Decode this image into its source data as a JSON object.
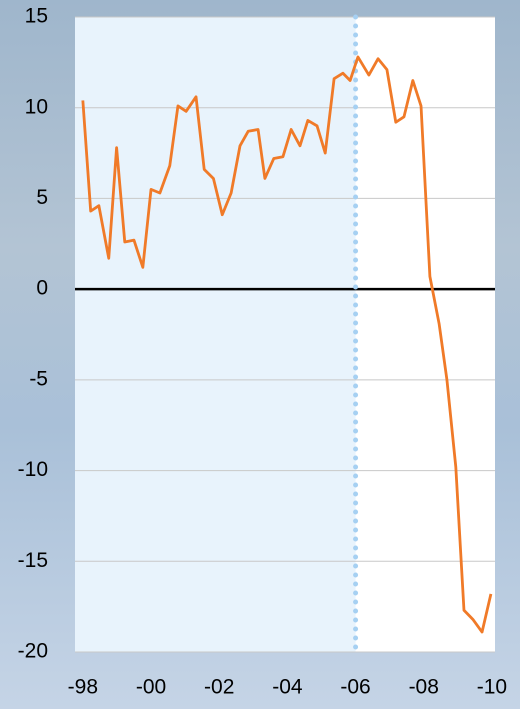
{
  "chart_data": {
    "type": "line",
    "x": [
      1998.0,
      1998.23,
      1998.47,
      1998.76,
      1998.99,
      1999.23,
      1999.5,
      1999.76,
      2000.0,
      2000.26,
      2000.55,
      2000.79,
      2001.03,
      2001.32,
      2001.56,
      2001.83,
      2002.09,
      2002.35,
      2002.61,
      2002.85,
      2003.14,
      2003.34,
      2003.6,
      2003.87,
      2004.11,
      2004.37,
      2004.6,
      2004.87,
      2005.11,
      2005.37,
      2005.63,
      2005.84,
      2006.07,
      2006.39,
      2006.66,
      2006.92,
      2007.18,
      2007.42,
      2007.68,
      2007.92,
      2008.18,
      2008.45,
      2008.68,
      2008.94,
      2009.18,
      2009.44,
      2009.71,
      2009.97
    ],
    "series": [
      {
        "color": "#f07a28",
        "values": [
          10.4,
          4.3,
          4.6,
          1.7,
          7.8,
          2.6,
          2.7,
          1.2,
          5.5,
          5.3,
          6.8,
          10.1,
          9.8,
          10.6,
          6.6,
          6.1,
          4.1,
          5.3,
          7.9,
          8.7,
          8.8,
          6.1,
          7.2,
          7.3,
          8.8,
          7.9,
          9.3,
          9.0,
          7.5,
          11.6,
          11.9,
          11.5,
          12.8,
          11.8,
          12.7,
          12.1,
          9.2,
          9.5,
          11.5,
          10.1,
          0.7,
          -1.9,
          -5.0,
          -9.8,
          -17.7,
          -18.2,
          -18.9,
          -16.8
        ]
      }
    ],
    "xlim": [
      1997.77,
      2010.09
    ],
    "xticks": [
      {
        "value": 1998,
        "label": "-98"
      },
      {
        "value": 2000,
        "label": "-00"
      },
      {
        "value": 2002,
        "label": "-02"
      },
      {
        "value": 2004,
        "label": "-04"
      },
      {
        "value": 2006,
        "label": "-06"
      },
      {
        "value": 2008,
        "label": "-08"
      },
      {
        "value": 2010,
        "label": "-10"
      }
    ],
    "ylim": [
      -20,
      15
    ],
    "yticks": [
      15,
      10,
      5,
      0,
      -5,
      -10,
      -15,
      -20
    ],
    "vline": 2006,
    "grid": true
  }
}
